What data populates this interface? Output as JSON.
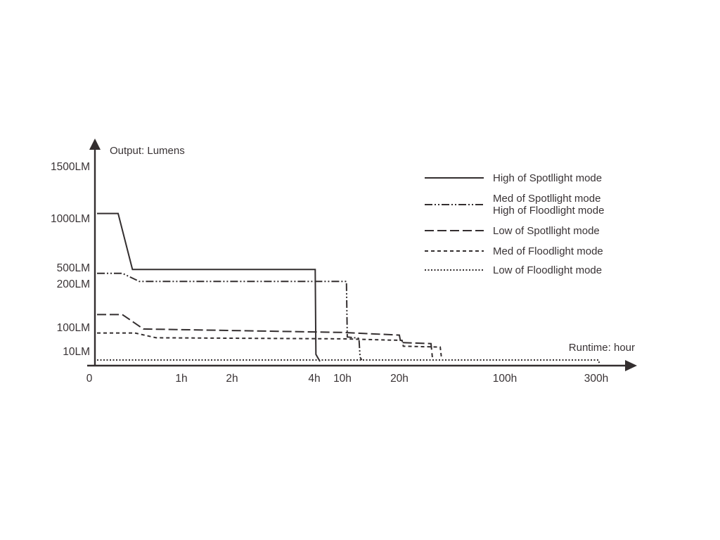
{
  "chart_data": {
    "type": "line",
    "title": "",
    "ylabel": "Output: Lumens",
    "xlabel": "Runtime: hour",
    "line_color": "#332e2f",
    "grid": false,
    "legend_position": "top-right",
    "x_ticks": [
      {
        "value": 0,
        "label": "0"
      },
      {
        "value": 1,
        "label": "1h"
      },
      {
        "value": 2,
        "label": "2h"
      },
      {
        "value": 4,
        "label": "4h"
      },
      {
        "value": 10,
        "label": "10h"
      },
      {
        "value": 20,
        "label": "20h"
      },
      {
        "value": 100,
        "label": "100h"
      },
      {
        "value": 300,
        "label": "300h"
      }
    ],
    "y_ticks": [
      {
        "value": 1500,
        "label": "1500LM"
      },
      {
        "value": 1000,
        "label": "1000LM"
      },
      {
        "value": 500,
        "label": "500LM"
      },
      {
        "value": 200,
        "label": "200LM"
      },
      {
        "value": 100,
        "label": "100LM"
      },
      {
        "value": 10,
        "label": "10LM"
      }
    ],
    "series": [
      {
        "id": "high-spotlight",
        "style": "solid",
        "label_lines": [
          "High of Spotllight mode"
        ],
        "points": [
          [
            0,
            1050
          ],
          [
            0.25,
            1050
          ],
          [
            0.42,
            470
          ],
          [
            4.2,
            470
          ],
          [
            4.35,
            8
          ],
          [
            5.2,
            3
          ]
        ]
      },
      {
        "id": "med-spotlight-high-floodlight",
        "style": "dashdotdot",
        "label_lines": [
          "Med of Spotllight mode",
          "High of Floodlight mode"
        ],
        "points": [
          [
            0,
            400
          ],
          [
            0.3,
            400
          ],
          [
            0.5,
            250
          ],
          [
            10.7,
            250
          ],
          [
            10.85,
            65
          ],
          [
            12.9,
            60
          ],
          [
            13.1,
            6
          ],
          [
            13.4,
            4
          ]
        ]
      },
      {
        "id": "low-spotlight",
        "style": "longdash",
        "label_lines": [
          "Low of Spotllight mode"
        ],
        "points": [
          [
            0,
            130
          ],
          [
            0.3,
            130
          ],
          [
            0.55,
            95
          ],
          [
            10,
            82
          ],
          [
            20,
            72
          ],
          [
            21,
            44
          ],
          [
            44,
            40
          ],
          [
            45,
            6
          ]
        ]
      },
      {
        "id": "med-floodlight",
        "style": "shortdash",
        "label_lines": [
          "Med of Floodlight mode"
        ],
        "points": [
          [
            0,
            80
          ],
          [
            0.45,
            80
          ],
          [
            0.7,
            62
          ],
          [
            10,
            58
          ],
          [
            22,
            52
          ],
          [
            23,
            30
          ],
          [
            51,
            27
          ],
          [
            52,
            5
          ]
        ]
      },
      {
        "id": "low-floodlight",
        "style": "dotted",
        "label_lines": [
          "Low of Floodlight mode"
        ],
        "points": [
          [
            0,
            4
          ],
          [
            305,
            4
          ],
          [
            307,
            1
          ]
        ]
      }
    ]
  }
}
